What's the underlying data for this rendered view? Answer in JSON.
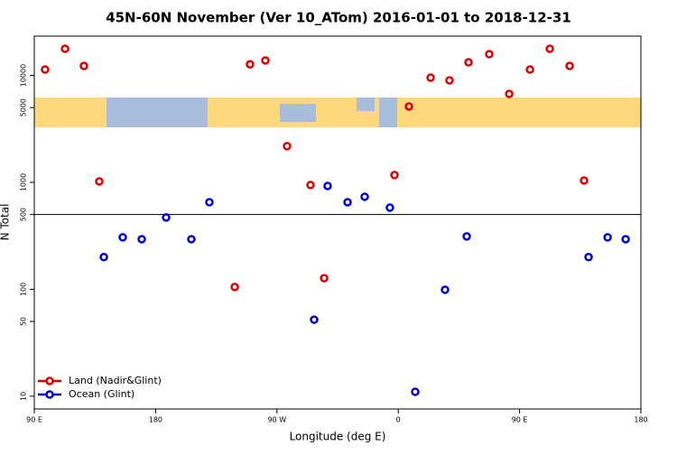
{
  "chart_data": {
    "type": "scatter",
    "title": "45N-60N November (Ver 10_ATom)   2016-01-01 to 2018-12-31",
    "x_label": "Longitude (deg E)",
    "y_label": "N Total",
    "xlim": [
      90,
      540
    ],
    "xticks": [
      {
        "value": 90,
        "label": "90 E"
      },
      {
        "value": 180,
        "label": "180"
      },
      {
        "value": 270,
        "label": "90 W"
      },
      {
        "value": 360,
        "label": "0"
      },
      {
        "value": 450,
        "label": "90 E"
      },
      {
        "value": 540,
        "label": "180"
      }
    ],
    "ylim": [
      7.6,
      23300
    ],
    "log_y": true,
    "yticks": [
      10,
      50,
      100,
      500,
      1000,
      5000,
      10000
    ],
    "hline": 500,
    "legend": "bottom-left",
    "series": [
      {
        "name": "Land (Nadir&Glint)",
        "color": "#e00000",
        "x": [
          98.0,
          112.8,
          126.8,
          138.2,
          238.7,
          250.0,
          261.4,
          277.5,
          294.9,
          305.0,
          357.2,
          367.9,
          384.0,
          398.0,
          412.1,
          427.5,
          442.3,
          457.7,
          472.4,
          487.1,
          497.8
        ],
        "values": [
          11350,
          17750,
          12270,
          1020,
          105,
          12700,
          13800,
          2180,
          944,
          127,
          1170,
          5120,
          9530,
          8990,
          13250,
          15800,
          6710,
          11350,
          17750,
          12270,
          1040
        ]
      },
      {
        "name": "Ocean (Glint)",
        "color": "#0000dd",
        "x": [
          141.6,
          155.6,
          169.7,
          187.8,
          206.5,
          219.9,
          297.6,
          307.6,
          322.4,
          335.1,
          353.8,
          372.6,
          394.7,
          410.8,
          501.2,
          515.3,
          528.7
        ],
        "values": [
          200,
          306,
          294,
          469,
          294,
          652,
          52,
          925,
          652,
          733,
          580,
          11,
          99,
          312,
          200,
          306,
          294
        ]
      }
    ]
  }
}
